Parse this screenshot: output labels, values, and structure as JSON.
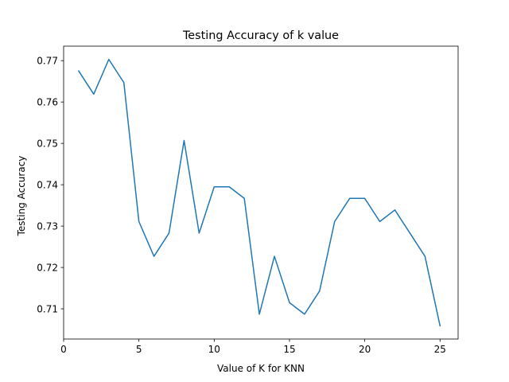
{
  "chart_data": {
    "type": "line",
    "title": "Testing Accuracy of k value",
    "xlabel": "Value of K for KNN",
    "ylabel": "Testing Accuracy",
    "xlim": [
      0,
      26.2
    ],
    "ylim": [
      0.7027,
      0.7735
    ],
    "xticks": [
      0,
      5,
      10,
      15,
      20,
      25
    ],
    "xtick_labels": [
      "0",
      "5",
      "10",
      "15",
      "20",
      "25"
    ],
    "yticks": [
      0.71,
      0.72,
      0.73,
      0.74,
      0.75,
      0.76,
      0.77
    ],
    "ytick_labels": [
      "0.71",
      "0.72",
      "0.73",
      "0.74",
      "0.75",
      "0.76",
      "0.77"
    ],
    "grid": false,
    "series": [
      {
        "color": "#1f77b4",
        "x": [
          1,
          2,
          3,
          4,
          5,
          6,
          7,
          8,
          9,
          10,
          11,
          12,
          13,
          14,
          15,
          16,
          17,
          18,
          19,
          20,
          21,
          22,
          23,
          24,
          25
        ],
        "y": [
          0.7675,
          0.7619,
          0.7703,
          0.7647,
          0.7311,
          0.7227,
          0.7283,
          0.7507,
          0.7283,
          0.7395,
          0.7395,
          0.7367,
          0.7087,
          0.7227,
          0.7115,
          0.7087,
          0.7143,
          0.7311,
          0.7367,
          0.7367,
          0.7311,
          0.7339,
          0.7283,
          0.7227,
          0.7059
        ]
      }
    ]
  }
}
